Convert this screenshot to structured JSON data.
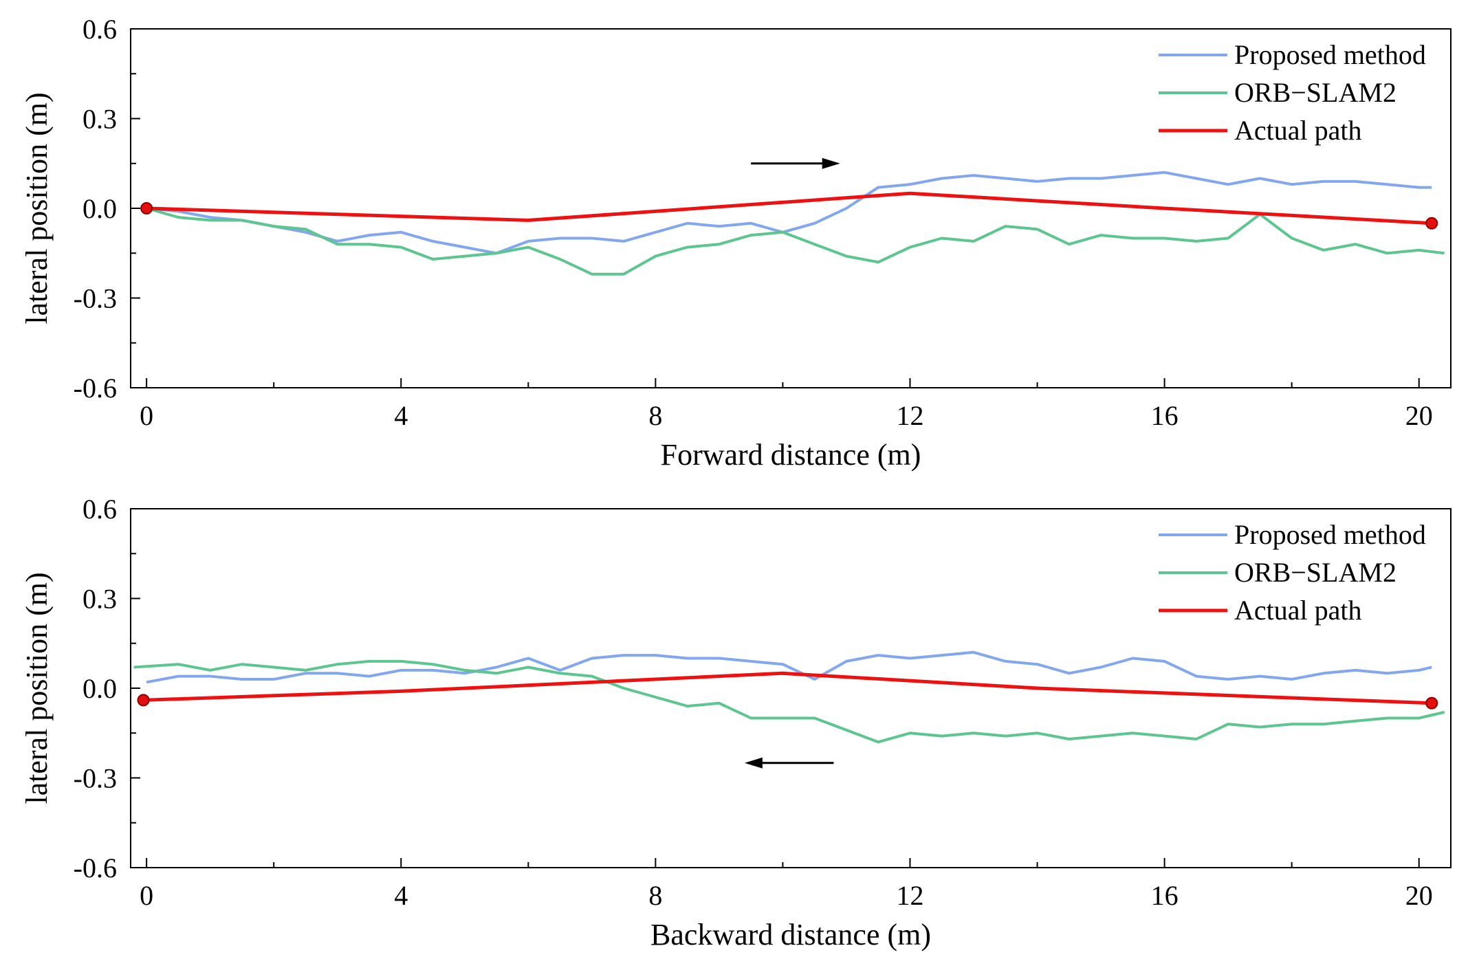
{
  "chart_data": [
    {
      "type": "line",
      "title": "",
      "xlabel": "Forward distance (m)",
      "ylabel": "lateral position (m)",
      "xlim": [
        -0.25,
        20.5
      ],
      "ylim": [
        -0.6,
        0.6
      ],
      "xticks": [
        0,
        4,
        8,
        12,
        16,
        20
      ],
      "xtick_labels": [
        "0",
        "4",
        "8",
        "12",
        "16",
        "20"
      ],
      "yticks": [
        -0.6,
        -0.3,
        0.0,
        0.3,
        0.6
      ],
      "ytick_labels": [
        "-0.6",
        "-0.3",
        "0.0",
        "0.3",
        "0.6"
      ],
      "grid": false,
      "legend_position": "top-right",
      "direction_arrow": "right",
      "series": [
        {
          "name": "Proposed method",
          "color": "#82a7ee",
          "x": [
            0,
            0.5,
            1,
            1.5,
            2,
            2.5,
            3,
            3.5,
            4,
            4.5,
            5,
            5.5,
            6,
            6.5,
            7,
            7.5,
            8,
            8.5,
            9,
            9.5,
            10,
            10.5,
            11,
            11.5,
            12,
            12.5,
            13,
            13.5,
            14,
            14.5,
            15,
            15.5,
            16,
            16.5,
            17,
            17.5,
            18,
            18.5,
            19,
            19.5,
            20,
            20.2
          ],
          "y": [
            0.0,
            -0.01,
            -0.03,
            -0.04,
            -0.06,
            -0.08,
            -0.11,
            -0.09,
            -0.08,
            -0.11,
            -0.13,
            -0.15,
            -0.11,
            -0.1,
            -0.1,
            -0.11,
            -0.08,
            -0.05,
            -0.06,
            -0.05,
            -0.08,
            -0.05,
            0.0,
            0.07,
            0.08,
            0.1,
            0.11,
            0.1,
            0.09,
            0.1,
            0.1,
            0.11,
            0.12,
            0.1,
            0.08,
            0.1,
            0.08,
            0.09,
            0.09,
            0.08,
            0.07,
            0.07
          ]
        },
        {
          "name": "ORB−SLAM2",
          "color": "#5dc58f",
          "x": [
            0,
            0.5,
            1,
            1.5,
            2,
            2.5,
            3,
            3.5,
            4,
            4.5,
            5,
            5.5,
            6,
            6.5,
            7,
            7.5,
            8,
            8.5,
            9,
            9.5,
            10,
            10.5,
            11,
            11.5,
            12,
            12.5,
            13,
            13.5,
            14,
            14.5,
            15,
            15.5,
            16,
            16.5,
            17,
            17.5,
            18,
            18.5,
            19,
            19.5,
            20,
            20.4
          ],
          "y": [
            0.0,
            -0.03,
            -0.04,
            -0.04,
            -0.06,
            -0.07,
            -0.12,
            -0.12,
            -0.13,
            -0.17,
            -0.16,
            -0.15,
            -0.13,
            -0.17,
            -0.22,
            -0.22,
            -0.16,
            -0.13,
            -0.12,
            -0.09,
            -0.08,
            -0.12,
            -0.16,
            -0.18,
            -0.13,
            -0.1,
            -0.11,
            -0.06,
            -0.07,
            -0.12,
            -0.09,
            -0.1,
            -0.1,
            -0.11,
            -0.1,
            -0.02,
            -0.1,
            -0.14,
            -0.12,
            -0.15,
            -0.14,
            -0.15
          ]
        },
        {
          "name": "Actual path",
          "color": "#ee1111",
          "x": [
            0,
            6,
            12,
            16,
            20.2
          ],
          "y": [
            0.0,
            -0.04,
            0.05,
            0.0,
            -0.05
          ]
        }
      ]
    },
    {
      "type": "line",
      "title": "",
      "xlabel": "Backward distance (m)",
      "ylabel": "lateral position (m)",
      "xlim": [
        -0.25,
        20.5
      ],
      "ylim": [
        -0.6,
        0.6
      ],
      "xticks": [
        0,
        4,
        8,
        12,
        16,
        20
      ],
      "xtick_labels": [
        "0",
        "4",
        "8",
        "12",
        "16",
        "20"
      ],
      "yticks": [
        -0.6,
        -0.3,
        0.0,
        0.3,
        0.6
      ],
      "ytick_labels": [
        "-0.6",
        "-0.3",
        "0.0",
        "0.3",
        "0.6"
      ],
      "grid": false,
      "legend_position": "top-right",
      "direction_arrow": "left",
      "series": [
        {
          "name": "Proposed method",
          "color": "#82a7ee",
          "x": [
            0,
            0.5,
            1,
            1.5,
            2,
            2.5,
            3,
            3.5,
            4,
            4.5,
            5,
            5.5,
            6,
            6.5,
            7,
            7.5,
            8,
            8.5,
            9,
            9.5,
            10,
            10.5,
            11,
            11.5,
            12,
            12.5,
            13,
            13.5,
            14,
            14.5,
            15,
            15.5,
            16,
            16.5,
            17,
            17.5,
            18,
            18.5,
            19,
            19.5,
            20,
            20.2
          ],
          "y": [
            0.02,
            0.04,
            0.04,
            0.03,
            0.03,
            0.05,
            0.05,
            0.04,
            0.06,
            0.06,
            0.05,
            0.07,
            0.1,
            0.06,
            0.1,
            0.11,
            0.11,
            0.1,
            0.1,
            0.09,
            0.08,
            0.03,
            0.09,
            0.11,
            0.1,
            0.11,
            0.12,
            0.09,
            0.08,
            0.05,
            0.07,
            0.1,
            0.09,
            0.04,
            0.03,
            0.04,
            0.03,
            0.05,
            0.06,
            0.05,
            0.06,
            0.07
          ]
        },
        {
          "name": "ORB−SLAM2",
          "color": "#5dc58f",
          "x": [
            -0.2,
            0.5,
            1,
            1.5,
            2,
            2.5,
            3,
            3.5,
            4,
            4.5,
            5,
            5.5,
            6,
            6.5,
            7,
            7.5,
            8,
            8.5,
            9,
            9.5,
            10,
            10.5,
            11,
            11.5,
            12,
            12.5,
            13,
            13.5,
            14,
            14.5,
            15,
            15.5,
            16,
            16.5,
            17,
            17.5,
            18,
            18.5,
            19,
            19.5,
            20,
            20.4
          ],
          "y": [
            0.07,
            0.08,
            0.06,
            0.08,
            0.07,
            0.06,
            0.08,
            0.09,
            0.09,
            0.08,
            0.06,
            0.05,
            0.07,
            0.05,
            0.04,
            0.0,
            -0.03,
            -0.06,
            -0.05,
            -0.1,
            -0.1,
            -0.1,
            -0.14,
            -0.18,
            -0.15,
            -0.16,
            -0.15,
            -0.16,
            -0.15,
            -0.17,
            -0.16,
            -0.15,
            -0.16,
            -0.17,
            -0.12,
            -0.13,
            -0.12,
            -0.12,
            -0.11,
            -0.1,
            -0.1,
            -0.08
          ]
        },
        {
          "name": "Actual path",
          "color": "#ee1111",
          "x": [
            -0.05,
            4,
            10,
            14,
            20.2
          ],
          "y": [
            -0.04,
            -0.01,
            0.05,
            0.0,
            -0.05
          ]
        }
      ]
    }
  ]
}
